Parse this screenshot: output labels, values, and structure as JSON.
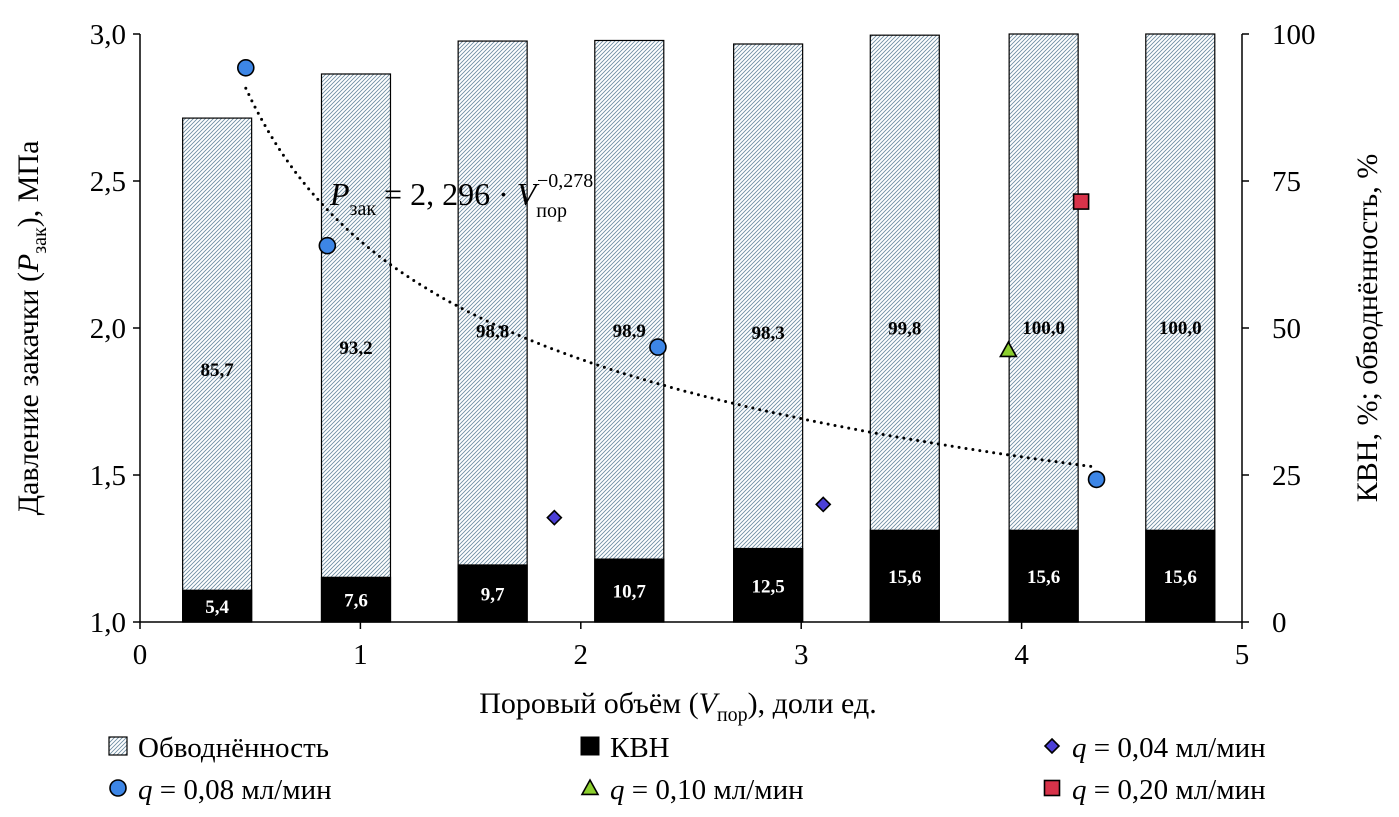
{
  "chart_data": {
    "type": "bar",
    "xaxis": {
      "label_main": "Поровый объём (",
      "label_var": "V",
      "label_sub": "пор",
      "label_end": "), доли ед.",
      "range": [
        0,
        5
      ],
      "ticks": [
        "0",
        "1",
        "2",
        "3",
        "4",
        "5"
      ]
    },
    "yaxis_left": {
      "label_main": "Давление закачки (",
      "label_var": "P",
      "label_sub": "зак",
      "label_end": "), МПа",
      "range": [
        1.0,
        3.0
      ],
      "ticks": [
        "1,0",
        "1,5",
        "2,0",
        "2,5",
        "3,0"
      ]
    },
    "yaxis_right": {
      "label": "КВН, %; обводнённость, %",
      "range": [
        0,
        100
      ],
      "ticks": [
        "0",
        "25",
        "50",
        "75",
        "100"
      ]
    },
    "bars": {
      "x": [
        0.35,
        0.98,
        1.6,
        2.22,
        2.85,
        3.47,
        4.1,
        4.72
      ],
      "watercut": {
        "name": "Обводнённость",
        "values": [
          85.7,
          93.2,
          98.8,
          98.9,
          98.3,
          99.8,
          100.0,
          100.0
        ],
        "labels": [
          "85,7",
          "93,2",
          "98,8",
          "98,9",
          "98,3",
          "99,8",
          "100,0",
          "100,0"
        ]
      },
      "kvn": {
        "name": "КВН",
        "values": [
          5.4,
          7.6,
          9.7,
          10.7,
          12.5,
          15.6,
          15.6,
          15.6
        ],
        "labels": [
          "5,4",
          "7,6",
          "9,7",
          "10,7",
          "12,5",
          "15,6",
          "15,6",
          "15,6"
        ]
      }
    },
    "scatter_series": [
      {
        "var": "q",
        "name": " = 0,04 мл/мин",
        "marker": "diamond",
        "color": "#4b3fd6",
        "points": [
          [
            1.88,
            1.355
          ],
          [
            3.1,
            1.4
          ]
        ]
      },
      {
        "var": "q",
        "name": " = 0,08 мл/мин",
        "marker": "circle",
        "color": "#3d86e6",
        "points": [
          [
            0.48,
            2.885
          ],
          [
            0.85,
            2.28
          ],
          [
            2.35,
            1.935
          ],
          [
            4.34,
            1.485
          ]
        ]
      },
      {
        "var": "q",
        "name": " = 0,10 мл/мин",
        "marker": "triangle",
        "color": "#8ccf2e",
        "points": [
          [
            3.94,
            1.925
          ]
        ]
      },
      {
        "var": "q",
        "name": " = 0,20 мл/мин",
        "marker": "square",
        "color": "#d8334a",
        "points": [
          [
            4.27,
            2.43
          ]
        ]
      }
    ],
    "trendline": {
      "coef": 2.296,
      "exponent": -0.278,
      "x_range": [
        0.48,
        4.34
      ],
      "eq_lhs": "P",
      "eq_lhs_sub": "зак",
      "eq_mid": " = 2, 296 · ",
      "eq_var": "V",
      "eq_var_sub": "пор",
      "eq_exp": "−0,278"
    },
    "legend": {
      "placement": "bottom",
      "items": [
        {
          "marker": "hatch",
          "label": "Обводнённость",
          "prefix": ""
        },
        {
          "marker": "black",
          "label": "КВН",
          "prefix": ""
        },
        {
          "marker": "diamond",
          "label": " = 0,04 мл/мин",
          "prefix": "q"
        },
        {
          "marker": "circle",
          "label": " = 0,08 мл/мин",
          "prefix": "q"
        },
        {
          "marker": "triangle",
          "label": " = 0,10 мл/мин",
          "prefix": "q"
        },
        {
          "marker": "square",
          "label": " = 0,20 мл/мин",
          "prefix": "q"
        }
      ]
    },
    "grid": false
  }
}
